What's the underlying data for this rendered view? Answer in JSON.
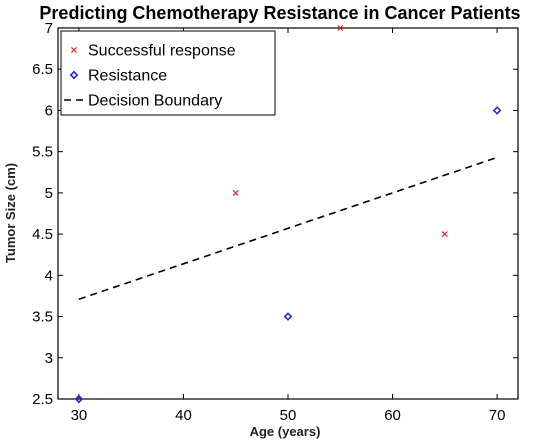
{
  "chart_data": {
    "type": "scatter",
    "title": "Predicting Chemotherapy Resistance in Cancer Patients",
    "xlabel": "Age (years)",
    "ylabel": "Tumor Size (cm)",
    "xlim": [
      28,
      72
    ],
    "ylim": [
      2.5,
      7
    ],
    "xticks": [
      30,
      40,
      50,
      60,
      70
    ],
    "yticks": [
      2.5,
      3,
      3.5,
      4,
      4.5,
      5,
      5.5,
      6,
      6.5,
      7
    ],
    "xtick_labels": [
      "30",
      "40",
      "50",
      "60",
      "70"
    ],
    "ytick_labels": [
      "2.5",
      "3",
      "3.5",
      "4",
      "4.5",
      "5",
      "5.5",
      "6",
      "6.5",
      "7"
    ],
    "grid": false,
    "legend_position": "top-left",
    "series": [
      {
        "name": "Successful response",
        "marker": "x",
        "color": "#e03030",
        "points": [
          {
            "x": 45,
            "y": 5.0
          },
          {
            "x": 55,
            "y": 7.0
          },
          {
            "x": 65,
            "y": 4.5
          }
        ]
      },
      {
        "name": "Resistance",
        "marker": "diamond",
        "color": "#1f2fd0",
        "points": [
          {
            "x": 30,
            "y": 2.5
          },
          {
            "x": 50,
            "y": 3.5
          },
          {
            "x": 70,
            "y": 6.0
          }
        ]
      },
      {
        "name": "Decision Boundary",
        "marker": "dashed-line",
        "color": "#000000",
        "points": [
          {
            "x": 30,
            "y": 3.71
          },
          {
            "x": 70,
            "y": 5.43
          }
        ]
      }
    ]
  }
}
